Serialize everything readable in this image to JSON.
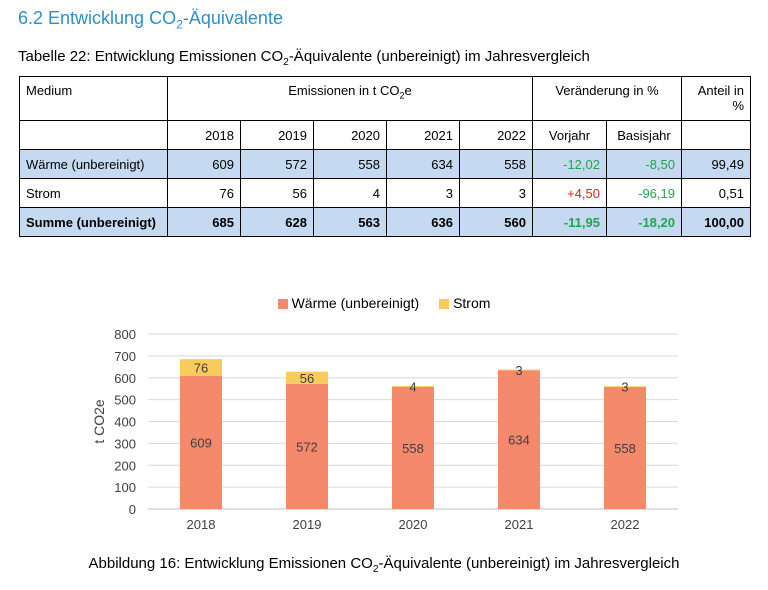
{
  "heading": {
    "pre": "6.2 Entwicklung CO",
    "sub": "2",
    "post": "-Äquivalente"
  },
  "table_caption": {
    "pre": "Tabelle 22: Entwicklung Emissionen CO",
    "sub": "2",
    "post": "-Äquivalente (unbereinigt) im Jahresvergleich"
  },
  "table": {
    "header": {
      "medium": "Medium",
      "emissions": {
        "pre": "Emissionen in t CO",
        "sub": "2",
        "post": "e"
      },
      "change": "Veränderung in %",
      "share": "Anteil in %"
    },
    "years": [
      "2018",
      "2019",
      "2020",
      "2021",
      "2022"
    ],
    "change_cols": [
      "Vorjahr",
      "Basisjahr"
    ],
    "rows": [
      {
        "label": "Wärme (unbereinigt)",
        "values": [
          "609",
          "572",
          "558",
          "634",
          "558"
        ],
        "vorjahr": "-12,02",
        "basisjahr": "-8,50",
        "anteil": "99,49"
      },
      {
        "label": "Strom",
        "values": [
          "76",
          "56",
          "4",
          "3",
          "3"
        ],
        "vorjahr": "+4,50",
        "basisjahr": "-96,19",
        "anteil": "0,51"
      },
      {
        "label": "Summe (unbereinigt)",
        "values": [
          "685",
          "628",
          "563",
          "636",
          "560"
        ],
        "vorjahr": "-11,95",
        "basisjahr": "-18,20",
        "anteil": "100,00"
      }
    ]
  },
  "chart_data": {
    "type": "bar",
    "stacked": true,
    "categories": [
      "2018",
      "2019",
      "2020",
      "2021",
      "2022"
    ],
    "series": [
      {
        "name": "Wärme (unbereinigt)",
        "values": [
          609,
          572,
          558,
          634,
          558
        ],
        "color": "#f4896b"
      },
      {
        "name": "Strom",
        "values": [
          76,
          56,
          4,
          3,
          3
        ],
        "color": "#f9cb5a"
      }
    ],
    "ylabel": "t CO2e",
    "ylim": [
      0,
      800
    ],
    "yticks": [
      0,
      100,
      200,
      300,
      400,
      500,
      600,
      700,
      800
    ],
    "grid": true,
    "legend": "top"
  },
  "figure_caption": {
    "pre": "Abbildung 16: Entwicklung Emissionen CO",
    "sub": "2",
    "post": "-Äquivalente (unbereinigt) im Jahresvergleich"
  }
}
